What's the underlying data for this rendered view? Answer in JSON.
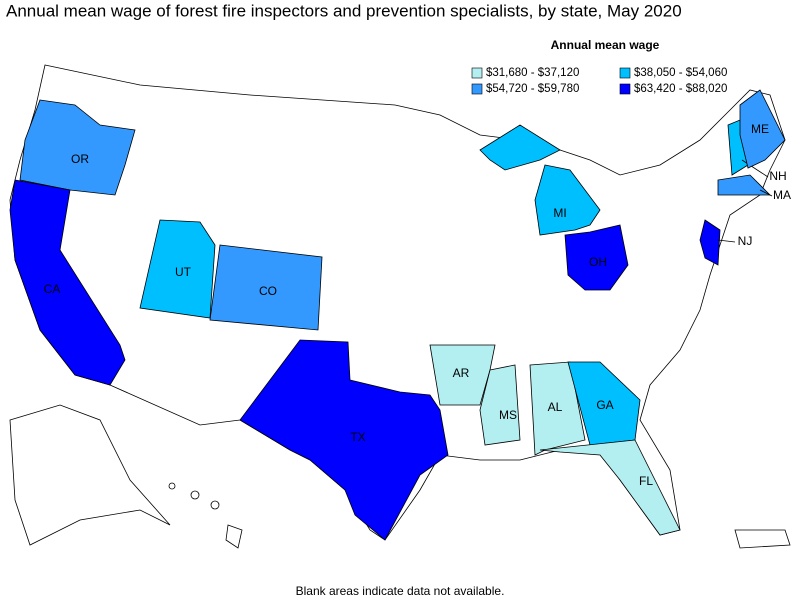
{
  "title": "Annual mean wage of forest fire inspectors and prevention specialists, by state, May 2020",
  "legend": {
    "title": "Annual mean wage",
    "items": [
      {
        "label": "$31,680 - $37,120",
        "color": "#b3eef0"
      },
      {
        "label": "$38,050 - $54,060",
        "color": "#00bfff"
      },
      {
        "label": "$54,720 - $59,780",
        "color": "#3399ff"
      },
      {
        "label": "$63,420 - $88,020",
        "color": "#0000ff"
      }
    ]
  },
  "states": [
    {
      "abbr": "OR",
      "color": "#3399ff"
    },
    {
      "abbr": "CA",
      "color": "#0000ff"
    },
    {
      "abbr": "UT",
      "color": "#00bfff"
    },
    {
      "abbr": "CO",
      "color": "#3399ff"
    },
    {
      "abbr": "TX",
      "color": "#0000ff"
    },
    {
      "abbr": "AR",
      "color": "#b3eef0"
    },
    {
      "abbr": "MS",
      "color": "#b3eef0"
    },
    {
      "abbr": "AL",
      "color": "#b3eef0"
    },
    {
      "abbr": "GA",
      "color": "#00bfff"
    },
    {
      "abbr": "FL",
      "color": "#b3eef0"
    },
    {
      "abbr": "MI",
      "color": "#00bfff"
    },
    {
      "abbr": "OH",
      "color": "#0000ff"
    },
    {
      "abbr": "NJ",
      "color": "#0000ff"
    },
    {
      "abbr": "NH",
      "color": "#00bfff"
    },
    {
      "abbr": "MA",
      "color": "#3399ff"
    },
    {
      "abbr": "ME",
      "color": "#3399ff"
    }
  ],
  "note": "Blank areas indicate data not available."
}
